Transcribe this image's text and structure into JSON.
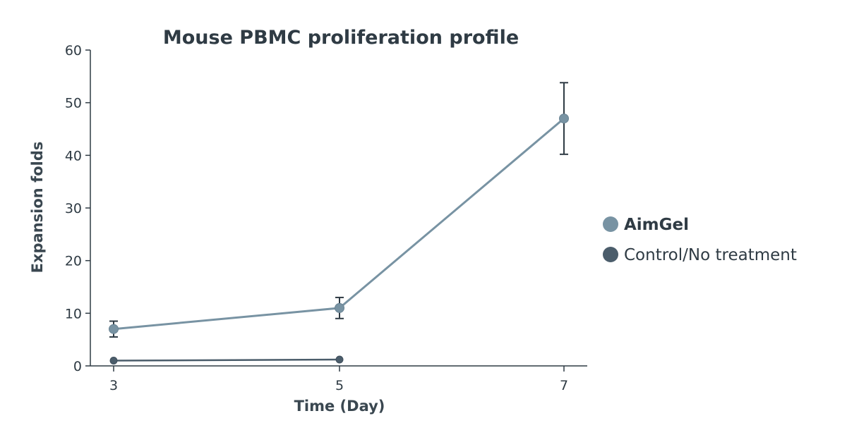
{
  "chart_data": {
    "type": "line",
    "title": "Mouse PBMC proliferation profile",
    "xlabel": "Time (Day)",
    "ylabel": "Expansion folds",
    "x_ticks": [
      "3",
      "5",
      "7"
    ],
    "y_ticks": [
      "0",
      "10",
      "20",
      "30",
      "40",
      "50",
      "60"
    ],
    "xlim": [
      3,
      7
    ],
    "ylim": [
      0,
      60
    ],
    "legend_position": "right",
    "series": [
      {
        "name": "AimGel",
        "color": "#7893a3",
        "x": [
          3,
          5,
          7
        ],
        "y": [
          7,
          11,
          47
        ],
        "error": [
          1.5,
          2,
          6.8
        ]
      },
      {
        "name": "Control/No treatment",
        "color": "#4b5d6b",
        "x": [
          3,
          5
        ],
        "y": [
          1,
          1.2
        ],
        "error": [
          0,
          0
        ]
      }
    ]
  }
}
